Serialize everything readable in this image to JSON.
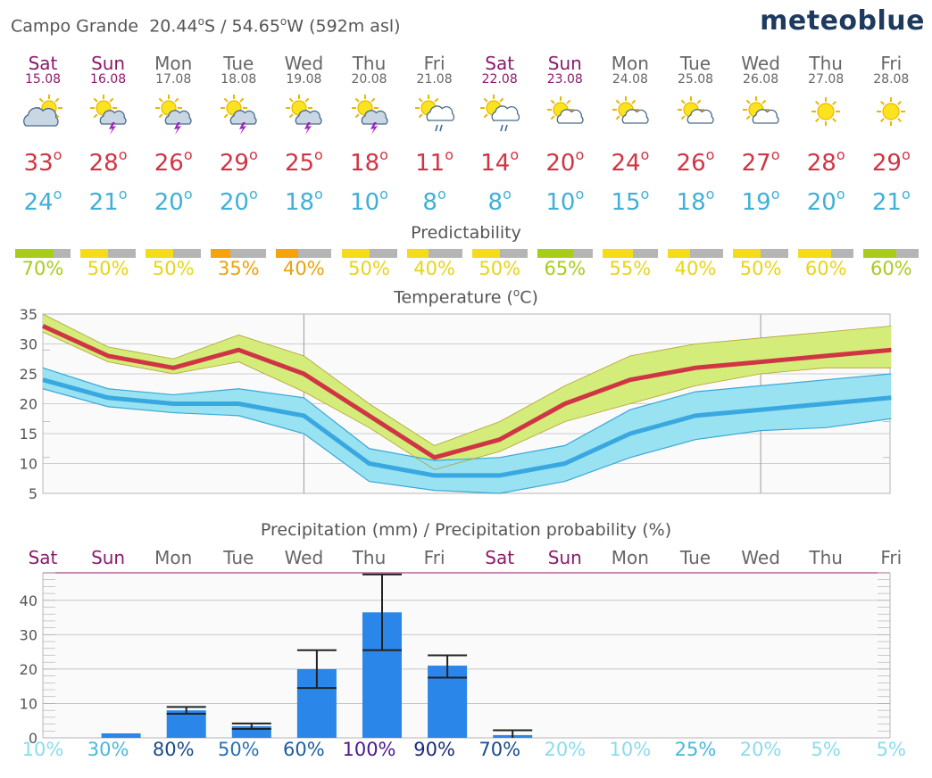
{
  "header": {
    "location": "Campo Grande",
    "lat": "20.44",
    "lat_dir": "S / 54.65",
    "lon_dir": "W (592m asl)",
    "logo": "meteoblue"
  },
  "days": [
    {
      "name": "Sat",
      "date": "15.08",
      "weekend": true,
      "icon": "cloudy-sun-icon",
      "tmax": "33",
      "tmin": "24",
      "pred": "70%",
      "pred_frac": 0.7,
      "pred_color": "#a8cc1a",
      "pred_text_color": "#a8cc1a",
      "short": "Sat",
      "pprob": "10%",
      "pprob_color": "#8adcec"
    },
    {
      "name": "Sun",
      "date": "16.08",
      "weekend": true,
      "icon": "sun-thunder-icon",
      "tmax": "28",
      "tmin": "21",
      "pred": "50%",
      "pred_frac": 0.5,
      "pred_color": "#f4dc18",
      "pred_text_color": "#e8d418",
      "short": "Sun",
      "pprob": "30%",
      "pprob_color": "#4ab8d8"
    },
    {
      "name": "Mon",
      "date": "17.08",
      "weekend": false,
      "icon": "sun-thunder-icon",
      "tmax": "26",
      "tmin": "20",
      "pred": "50%",
      "pred_frac": 0.5,
      "pred_color": "#f4dc18",
      "pred_text_color": "#e8d418",
      "short": "Mon",
      "pprob": "80%",
      "pprob_color": "#1a4a8c"
    },
    {
      "name": "Tue",
      "date": "18.08",
      "weekend": false,
      "icon": "sun-thunder-icon",
      "tmax": "29",
      "tmin": "20",
      "pred": "35%",
      "pred_frac": 0.35,
      "pred_color": "#f5a20c",
      "pred_text_color": "#eaa20c",
      "short": "Tue",
      "pprob": "50%",
      "pprob_color": "#2a70b0"
    },
    {
      "name": "Wed",
      "date": "19.08",
      "weekend": false,
      "icon": "sun-thunder-icon",
      "tmax": "25",
      "tmin": "18",
      "pred": "40%",
      "pred_frac": 0.4,
      "pred_color": "#f5a20c",
      "pred_text_color": "#eaa20c",
      "short": "Wed",
      "pprob": "60%",
      "pprob_color": "#1e5ca0"
    },
    {
      "name": "Thu",
      "date": "20.08",
      "weekend": false,
      "icon": "sun-thunder-icon",
      "tmax": "18",
      "tmin": "10",
      "pred": "50%",
      "pred_frac": 0.5,
      "pred_color": "#f4dc18",
      "pred_text_color": "#e8d418",
      "short": "Thu",
      "pprob": "100%",
      "pprob_color": "#4a1a8c"
    },
    {
      "name": "Fri",
      "date": "21.08",
      "weekend": false,
      "icon": "sun-rain-icon",
      "tmax": "11",
      "tmin": "8",
      "pred": "40%",
      "pred_frac": 0.4,
      "pred_color": "#f4dc18",
      "pred_text_color": "#e8d418",
      "short": "Fri",
      "pprob": "90%",
      "pprob_color": "#1a2a7c"
    },
    {
      "name": "Sat",
      "date": "22.08",
      "weekend": true,
      "icon": "sun-rain-icon",
      "tmax": "14",
      "tmin": "8",
      "pred": "50%",
      "pred_frac": 0.5,
      "pred_color": "#f4dc18",
      "pred_text_color": "#e8d418",
      "short": "Sat",
      "pprob": "70%",
      "pprob_color": "#1a4a8c"
    },
    {
      "name": "Sun",
      "date": "23.08",
      "weekend": true,
      "icon": "sun-cloud-icon",
      "tmax": "20",
      "tmin": "10",
      "pred": "65%",
      "pred_frac": 0.65,
      "pred_color": "#a8cc1a",
      "pred_text_color": "#a8cc1a",
      "short": "Sun",
      "pprob": "20%",
      "pprob_color": "#8adcec"
    },
    {
      "name": "Mon",
      "date": "24.08",
      "weekend": false,
      "icon": "sun-cloud-icon",
      "tmax": "24",
      "tmin": "15",
      "pred": "55%",
      "pred_frac": 0.55,
      "pred_color": "#f4dc18",
      "pred_text_color": "#e8d418",
      "short": "Mon",
      "pprob": "10%",
      "pprob_color": "#8adcec"
    },
    {
      "name": "Tue",
      "date": "25.08",
      "weekend": false,
      "icon": "sun-cloud-icon",
      "tmax": "26",
      "tmin": "18",
      "pred": "40%",
      "pred_frac": 0.4,
      "pred_color": "#f4dc18",
      "pred_text_color": "#e8d418",
      "short": "Tue",
      "pprob": "25%",
      "pprob_color": "#4ab8d8"
    },
    {
      "name": "Wed",
      "date": "26.08",
      "weekend": false,
      "icon": "sun-cloud-icon",
      "tmax": "27",
      "tmin": "19",
      "pred": "50%",
      "pred_frac": 0.5,
      "pred_color": "#f4dc18",
      "pred_text_color": "#e8d418",
      "short": "Wed",
      "pprob": "20%",
      "pprob_color": "#8adcec"
    },
    {
      "name": "Thu",
      "date": "27.08",
      "weekend": false,
      "icon": "sun-icon",
      "tmax": "28",
      "tmin": "20",
      "pred": "60%",
      "pred_frac": 0.6,
      "pred_color": "#f4dc18",
      "pred_text_color": "#e8d418",
      "short": "Thu",
      "pprob": "5%",
      "pprob_color": "#8adcec"
    },
    {
      "name": "Fri",
      "date": "28.08",
      "weekend": false,
      "icon": "sun-icon",
      "tmax": "29",
      "tmin": "21",
      "pred": "60%",
      "pred_frac": 0.6,
      "pred_color": "#a8cc1a",
      "pred_text_color": "#a8cc1a",
      "short": "Fri",
      "pprob": "5%",
      "pprob_color": "#8adcec"
    }
  ],
  "degree_symbol": "o",
  "predictability_title": "Predictability",
  "temperature_title_prefix": "Temperature (",
  "temperature_title_unit": "C)",
  "precip_title": "Precipitation (mm) / Precipitation probability (%)",
  "colors": {
    "tmax": "#d03545",
    "tmin": "#3fb0d8",
    "max_band": "#d4ec7a",
    "min_band": "#98e2f2",
    "bar": "#2a86e8",
    "weekend": "#8b1a6b"
  },
  "chart_data": [
    {
      "type": "line",
      "title": "Temperature (°C)",
      "categories": [
        "Sat",
        "Sun",
        "Mon",
        "Tue",
        "Wed",
        "Thu",
        "Fri",
        "Sat",
        "Sun",
        "Mon",
        "Tue",
        "Wed",
        "Thu",
        "Fri"
      ],
      "ylim": [
        5,
        35
      ],
      "yticks": [
        5,
        10,
        15,
        20,
        25,
        30,
        35
      ],
      "grid": true,
      "series": [
        {
          "name": "max",
          "values": [
            33,
            28,
            26,
            29,
            25,
            18,
            11,
            14,
            20,
            24,
            26,
            27,
            28,
            29
          ],
          "band_low": [
            32,
            27,
            25,
            27,
            22,
            16,
            9,
            12,
            17,
            20,
            23,
            25,
            26,
            26
          ],
          "band_high": [
            35,
            29.5,
            27.5,
            31.5,
            28,
            20,
            13,
            17,
            23,
            28,
            30,
            31,
            32,
            33
          ]
        },
        {
          "name": "min",
          "values": [
            24,
            21,
            20,
            20,
            18,
            10,
            8,
            8,
            10,
            15,
            18,
            19,
            20,
            21
          ],
          "band_low": [
            22.5,
            19.5,
            18.5,
            18,
            15,
            7,
            5.5,
            5,
            7,
            11,
            14,
            15.5,
            16,
            17.5
          ],
          "band_high": [
            26,
            22.5,
            21.5,
            22.5,
            21,
            12.5,
            10.5,
            11,
            13,
            19,
            22,
            23,
            24,
            25
          ]
        }
      ]
    },
    {
      "type": "bar",
      "title": "Precipitation (mm) / Precipitation probability (%)",
      "categories": [
        "Sat",
        "Sun",
        "Mon",
        "Tue",
        "Wed",
        "Thu",
        "Fri",
        "Sat",
        "Sun",
        "Mon",
        "Tue",
        "Wed",
        "Thu",
        "Fri"
      ],
      "ylim": [
        0,
        48
      ],
      "yticks": [
        0,
        10,
        20,
        30,
        40
      ],
      "grid": true,
      "values": [
        0,
        1.3,
        8,
        3.4,
        20,
        36.5,
        21,
        0.8,
        0,
        0,
        0,
        0,
        0,
        0
      ],
      "err_low": [
        null,
        null,
        7,
        2.6,
        14.5,
        25.5,
        17.5,
        null,
        null,
        null,
        null,
        null,
        null,
        null
      ],
      "err_high": [
        null,
        null,
        9,
        4.2,
        25.5,
        47.5,
        24,
        2.2,
        null,
        null,
        null,
        null,
        null,
        null
      ],
      "probability": [
        "10%",
        "30%",
        "80%",
        "50%",
        "60%",
        "100%",
        "90%",
        "70%",
        "20%",
        "10%",
        "25%",
        "20%",
        "5%",
        "5%"
      ]
    }
  ]
}
